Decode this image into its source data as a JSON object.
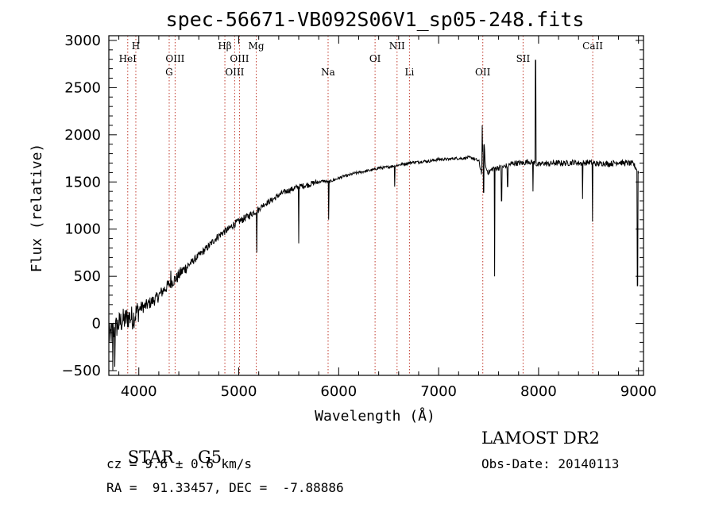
{
  "page": {
    "title": "spec-56671-VB092S06V1_sp05-248.fits",
    "classification": {
      "class": "STAR",
      "subclass": "G5"
    },
    "redshift_text": "cz = 9.6 ± 0.6 km/s",
    "coords_text": "RA =  91.33457, DEC =  -7.88886",
    "survey": "LAMOST DR2",
    "obs_date_text": "Obs-Date: 20140113"
  },
  "colors": {
    "line_marker": "#c0392b",
    "spectrum": "#000000",
    "axis": "#000000"
  },
  "chart_data": {
    "type": "line",
    "title": "spec-56671-VB092S06V1_sp05-248.fits",
    "xlabel": "Wavelength (Å)",
    "ylabel": "Flux (relative)",
    "xlim": [
      3700,
      9050
    ],
    "ylim": [
      -550,
      3050
    ],
    "xticks": [
      4000,
      5000,
      6000,
      7000,
      8000,
      9000
    ],
    "yticks": [
      -500,
      0,
      500,
      1000,
      1500,
      2000,
      2500,
      3000
    ],
    "grid": false,
    "spectral_lines": [
      {
        "label": "HeI",
        "wavelength": 3889,
        "row": 2
      },
      {
        "label": "H",
        "wavelength": 3970,
        "row": 1
      },
      {
        "label": "G",
        "wavelength": 4304,
        "row": 3
      },
      {
        "label": "OIII",
        "wavelength": 4363,
        "row": 2
      },
      {
        "label": "Hβ",
        "wavelength": 4861,
        "row": 1
      },
      {
        "label": "OIII",
        "wavelength": 4959,
        "row": 3
      },
      {
        "label": "OIII",
        "wavelength": 5007,
        "row": 2
      },
      {
        "label": "Mg",
        "wavelength": 5175,
        "row": 1
      },
      {
        "label": "Na",
        "wavelength": 5894,
        "row": 3
      },
      {
        "label": "OI",
        "wavelength": 6364,
        "row": 2
      },
      {
        "label": "NII",
        "wavelength": 6584,
        "row": 1
      },
      {
        "label": "Li",
        "wavelength": 6708,
        "row": 3
      },
      {
        "label": "OII",
        "wavelength": 7442,
        "row": 3
      },
      {
        "label": "SII",
        "wavelength": 7845,
        "row": 2
      },
      {
        "label": "CaII",
        "wavelength": 8542,
        "row": 1
      }
    ],
    "series": [
      {
        "x": [
          3700,
          3740,
          3780,
          3820,
          3860,
          3900,
          3940,
          3980,
          4020,
          4060,
          4100,
          4140,
          4180,
          4220,
          4260,
          4300,
          4340,
          4380,
          4420,
          4460,
          4500,
          4540,
          4580,
          4620,
          4660,
          4700,
          4750,
          4800,
          4850,
          4900,
          4950,
          5000,
          5050,
          5100,
          5150,
          5200,
          5250,
          5300,
          5350,
          5400,
          5450,
          5500,
          5550,
          5600,
          5650,
          5700,
          5750,
          5800,
          5850,
          5900,
          5950,
          6000,
          6050,
          6100,
          6150,
          6200,
          6250,
          6300,
          6350,
          6400,
          6450,
          6500,
          6550,
          6600,
          6650,
          6700,
          6750,
          6800,
          6850,
          6900,
          6950,
          7000,
          7050,
          7100,
          7150,
          7200,
          7250,
          7300,
          7350,
          7400,
          7430,
          7450,
          7470,
          7500,
          7550,
          7600,
          7650,
          7700,
          7750,
          7800,
          7850,
          7900,
          7950,
          8000,
          8050,
          8100,
          8150,
          8200,
          8250,
          8300,
          8350,
          8400,
          8450,
          8500,
          8550,
          8600,
          8650,
          8700,
          8750,
          8800,
          8850,
          8900,
          8950,
          9000
        ],
        "y": [
          -150,
          -80,
          -30,
          20,
          40,
          70,
          60,
          120,
          170,
          180,
          210,
          240,
          270,
          320,
          370,
          410,
          450,
          480,
          540,
          580,
          620,
          660,
          700,
          740,
          780,
          820,
          880,
          930,
          970,
          1000,
          1050,
          1080,
          1110,
          1140,
          1180,
          1210,
          1260,
          1290,
          1320,
          1360,
          1390,
          1410,
          1430,
          1450,
          1460,
          1470,
          1490,
          1500,
          1510,
          1500,
          1520,
          1540,
          1560,
          1570,
          1590,
          1600,
          1610,
          1620,
          1630,
          1650,
          1650,
          1660,
          1670,
          1680,
          1690,
          1700,
          1710,
          1710,
          1720,
          1720,
          1730,
          1740,
          1740,
          1740,
          1750,
          1750,
          1750,
          1760,
          1750,
          1720,
          1600,
          1980,
          1650,
          1600,
          1650,
          1650,
          1660,
          1680,
          1700,
          1700,
          1700,
          1720,
          1700,
          1680,
          1700,
          1690,
          1700,
          1700,
          1700,
          1700,
          1710,
          1700,
          1700,
          1710,
          1700,
          1690,
          1700,
          1690,
          1700,
          1710,
          1700,
          1700,
          1690,
          1600
        ]
      }
    ],
    "features": [
      {
        "x": 3740,
        "y": -500
      },
      {
        "x": 3760,
        "y": -460
      },
      {
        "x": 4320,
        "y": 560
      },
      {
        "x": 5180,
        "y": 750
      },
      {
        "x": 5600,
        "y": 850
      },
      {
        "x": 5900,
        "y": 1100
      },
      {
        "x": 6560,
        "y": 1450
      },
      {
        "x": 7435,
        "y": 2100
      },
      {
        "x": 7450,
        "y": 1390
      },
      {
        "x": 7560,
        "y": 500
      },
      {
        "x": 7630,
        "y": 1300
      },
      {
        "x": 7690,
        "y": 1450
      },
      {
        "x": 7945,
        "y": 1400
      },
      {
        "x": 7970,
        "y": 2790
      },
      {
        "x": 8440,
        "y": 1320
      },
      {
        "x": 8540,
        "y": 1080
      },
      {
        "x": 8990,
        "y": 400
      }
    ]
  }
}
